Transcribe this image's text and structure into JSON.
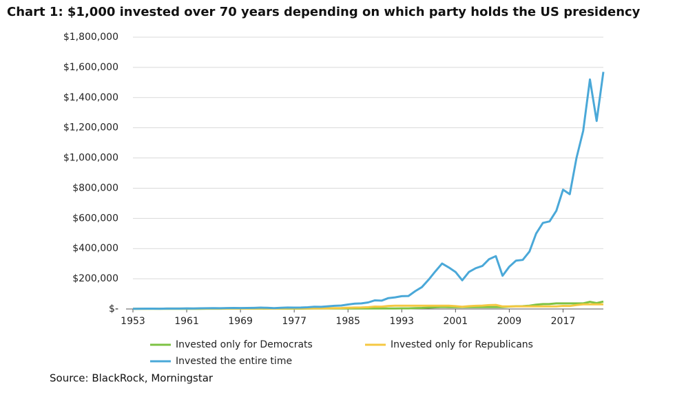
{
  "chart_data": {
    "type": "line",
    "title": "Chart 1: $1,000 invested over 70 years depending on which party holds the US presidency",
    "source": "Source: BlackRock, Morningstar",
    "x": [
      1953,
      1954,
      1955,
      1956,
      1957,
      1958,
      1959,
      1960,
      1961,
      1962,
      1963,
      1964,
      1965,
      1966,
      1967,
      1968,
      1969,
      1970,
      1971,
      1972,
      1973,
      1974,
      1975,
      1976,
      1977,
      1978,
      1979,
      1980,
      1981,
      1982,
      1983,
      1984,
      1985,
      1986,
      1987,
      1988,
      1989,
      1990,
      1991,
      1992,
      1993,
      1994,
      1995,
      1996,
      1997,
      1998,
      1999,
      2000,
      2001,
      2002,
      2003,
      2004,
      2005,
      2006,
      2007,
      2008,
      2009,
      2010,
      2011,
      2012,
      2013,
      2014,
      2015,
      2016,
      2017,
      2018,
      2019,
      2020,
      2021,
      2022,
      2023
    ],
    "xlim": [
      1953,
      2023
    ],
    "xticks": [
      1953,
      1961,
      1969,
      1977,
      1985,
      1993,
      2001,
      2009,
      2017
    ],
    "ylim": [
      0,
      1800000
    ],
    "yticks": [
      {
        "value": 0,
        "label": "$-"
      },
      {
        "value": 200000,
        "label": "$200,000"
      },
      {
        "value": 400000,
        "label": "$400,000"
      },
      {
        "value": 600000,
        "label": "$600,000"
      },
      {
        "value": 800000,
        "label": "$800,000"
      },
      {
        "value": 1000000,
        "label": "$1,000,000"
      },
      {
        "value": 1200000,
        "label": "$1,200,000"
      },
      {
        "value": 1400000,
        "label": "$1,400,000"
      },
      {
        "value": 1600000,
        "label": "$1,600,000"
      },
      {
        "value": 1800000,
        "label": "$1,800,000"
      }
    ],
    "grid": true,
    "legend": "bottom",
    "series": [
      {
        "name": "Invested only for Democrats",
        "color": "#7dc243",
        "values": [
          1000,
          1000,
          1000,
          1000,
          1000,
          1000,
          1000,
          1000,
          1270,
          1160,
          1420,
          1650,
          1850,
          1660,
          2060,
          2290,
          2290,
          2290,
          2290,
          2290,
          2290,
          2290,
          2290,
          2290,
          2130,
          2270,
          2690,
          3560,
          3560,
          3560,
          3560,
          3560,
          3560,
          3560,
          3560,
          3560,
          3560,
          3560,
          3560,
          3560,
          3920,
          3970,
          5460,
          6710,
          8950,
          11500,
          13900,
          12600,
          12600,
          12600,
          12600,
          12600,
          12600,
          12600,
          12600,
          12600,
          15900,
          18300,
          18700,
          21700,
          28700,
          32600,
          33000,
          37000,
          37000,
          37000,
          37000,
          37000,
          47600,
          38900,
          49100
        ]
      },
      {
        "name": "Invested only for Republicans",
        "color": "#f5c842",
        "values": [
          1000,
          1500,
          1970,
          2100,
          1880,
          2690,
          3010,
          3030,
          3030,
          3030,
          3030,
          3030,
          3030,
          3030,
          3030,
          3030,
          2770,
          2880,
          3290,
          3910,
          3340,
          2460,
          3370,
          4180,
          4180,
          4180,
          4180,
          4180,
          3970,
          4820,
          5910,
          6280,
          8270,
          9800,
          10300,
          12000,
          15800,
          15300,
          19900,
          21400,
          21400,
          21400,
          21400,
          21400,
          21400,
          21400,
          21400,
          21400,
          18800,
          14700,
          18900,
          21000,
          22000,
          25400,
          26800,
          16900,
          16900,
          16900,
          16900,
          16900,
          16900,
          16900,
          16900,
          16900,
          20600,
          19700,
          25900,
          30700,
          30700,
          30700,
          30700
        ]
      },
      {
        "name": "Invested the entire time",
        "color": "#4aa8d8",
        "values": [
          1000,
          1500,
          2000,
          2100,
          1900,
          2700,
          3000,
          3000,
          3800,
          3500,
          4300,
          5000,
          5600,
          5000,
          6200,
          6900,
          6300,
          6600,
          7500,
          9000,
          7700,
          5700,
          7800,
          9700,
          9000,
          9600,
          11400,
          15000,
          14300,
          17400,
          21300,
          22600,
          29800,
          35300,
          37200,
          43300,
          57000,
          55000,
          72000,
          77000,
          85000,
          86000,
          118000,
          145000,
          194000,
          249000,
          301000,
          275000,
          245000,
          190000,
          245000,
          270000,
          285000,
          330000,
          350000,
          220000,
          280000,
          320000,
          325000,
          380000,
          500000,
          570000,
          580000,
          650000,
          790000,
          760000,
          1000000,
          1180000,
          1520000,
          1245000,
          1570000
        ]
      }
    ]
  }
}
